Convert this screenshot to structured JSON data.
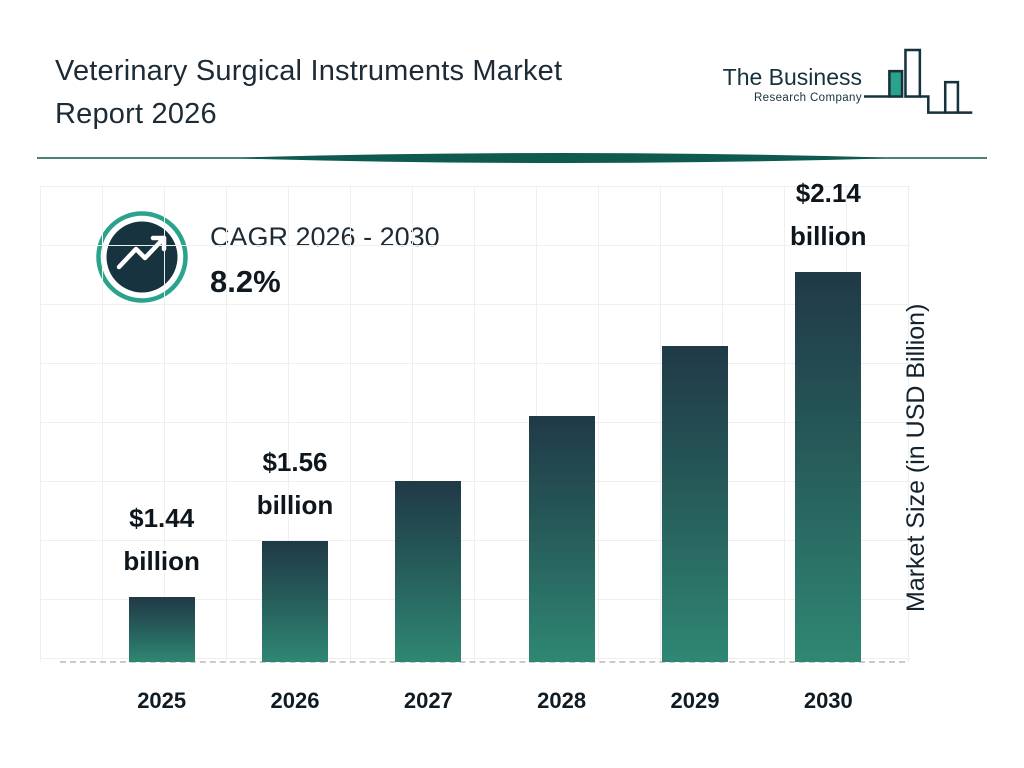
{
  "header": {
    "title_line1": "Veterinary Surgical Instruments Market",
    "title_line2": "Report 2026",
    "logo": {
      "name_line1": "The Business",
      "name_line2": "Research Company"
    }
  },
  "cagr": {
    "label": "CAGR 2026 - 2030",
    "value": "8.2%",
    "icon": "trending-up-icon"
  },
  "chart_data": {
    "type": "bar",
    "title": "Veterinary Surgical Instruments Market Report 2026",
    "categories": [
      "2025",
      "2026",
      "2027",
      "2028",
      "2029",
      "2030"
    ],
    "values": [
      1.44,
      1.56,
      1.69,
      1.83,
      1.98,
      2.14
    ],
    "bar_labels": [
      [
        "$1.44",
        "billion"
      ],
      [
        "$1.56",
        "billion"
      ],
      null,
      null,
      null,
      [
        "$2.14",
        "billion"
      ]
    ],
    "xlabel": "",
    "ylabel": "Market Size (in USD Billion)",
    "ylim": [
      1.3,
      2.14
    ],
    "grid": true,
    "legend": false,
    "unit": "USD Billion",
    "cagr_2026_2030_percent": 8.2
  },
  "colors": {
    "bar_top": "#203947",
    "bar_mid": "#265a59",
    "bar_bottom": "#2f8773",
    "accent_teal": "#2aa38d",
    "badge_circle": "#16333f",
    "divider": "#0f5a4e",
    "text_dark": "#1d2b36"
  }
}
